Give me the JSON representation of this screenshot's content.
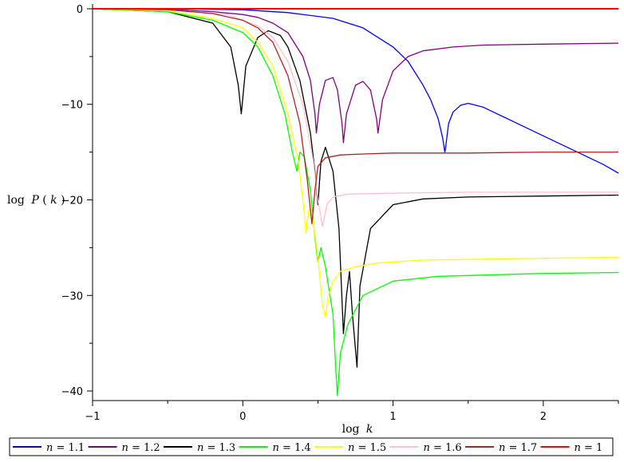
{
  "chart_data": {
    "type": "line",
    "xlabel": "log k",
    "ylabel": "log P(k)",
    "xlim": [
      -1,
      2.5
    ],
    "ylim": [
      -41,
      0.5
    ],
    "xticks": [
      -1,
      0,
      1,
      2
    ],
    "yticks": [
      0,
      -10,
      -20,
      -30,
      -40
    ],
    "grid": false,
    "legend_position": "bottom",
    "series": [
      {
        "name": "n = 1.1",
        "color": "#0000ff",
        "x": [
          -1,
          -0.5,
          0,
          0.3,
          0.6,
          0.8,
          1.0,
          1.1,
          1.2,
          1.25,
          1.3,
          1.33,
          1.345,
          1.35,
          1.37,
          1.4,
          1.45,
          1.5,
          1.6,
          1.8,
          2.0,
          2.2,
          2.4,
          2.5
        ],
        "y": [
          0,
          0,
          -0.1,
          -0.4,
          -1,
          -2,
          -4,
          -5.5,
          -8,
          -9.5,
          -11.5,
          -13.5,
          -15,
          -14.5,
          -12,
          -10.8,
          -10.1,
          -9.9,
          -10.3,
          -11.8,
          -13.3,
          -14.8,
          -16.3,
          -17.2
        ]
      },
      {
        "name": "n = 1.2",
        "color": "#800080",
        "x": [
          -1,
          -0.5,
          -0.2,
          0,
          0.1,
          0.2,
          0.3,
          0.4,
          0.45,
          0.48,
          0.49,
          0.51,
          0.55,
          0.6,
          0.63,
          0.66,
          0.67,
          0.69,
          0.75,
          0.8,
          0.85,
          0.89,
          0.9,
          0.93,
          1.0,
          1.1,
          1.2,
          1.4,
          1.6,
          2.0,
          2.5
        ],
        "y": [
          0,
          -0.05,
          -0.3,
          -0.6,
          -0.9,
          -1.5,
          -2.5,
          -5,
          -7.5,
          -11,
          -13,
          -10,
          -7.5,
          -7.2,
          -8.5,
          -12,
          -14,
          -11,
          -8,
          -7.6,
          -8.5,
          -11.5,
          -13,
          -9.5,
          -6.5,
          -5,
          -4.4,
          -4,
          -3.8,
          -3.7,
          -3.6
        ]
      },
      {
        "name": "n = 1.3",
        "color": "#000000",
        "x": [
          -1,
          -0.5,
          -0.2,
          -0.08,
          -0.03,
          -0.01,
          0.02,
          0.1,
          0.17,
          0.25,
          0.3,
          0.38,
          0.45,
          0.48,
          0.5,
          0.52,
          0.55,
          0.6,
          0.64,
          0.67,
          0.69,
          0.71,
          0.73,
          0.76,
          0.78,
          0.85,
          1.0,
          1.2,
          1.5,
          2.0,
          2.5
        ],
        "y": [
          0,
          -0.3,
          -1.5,
          -4,
          -8,
          -11,
          -6,
          -3,
          -2.3,
          -2.8,
          -4,
          -7.5,
          -13,
          -17,
          -20.5,
          -16,
          -14.5,
          -17,
          -23,
          -34,
          -30,
          -27.5,
          -32,
          -37.5,
          -29,
          -23,
          -20.5,
          -19.9,
          -19.7,
          -19.6,
          -19.5
        ]
      },
      {
        "name": "n = 1.4",
        "color": "#00ff00",
        "x": [
          -1,
          -0.5,
          -0.2,
          0,
          0.1,
          0.2,
          0.28,
          0.33,
          0.36,
          0.38,
          0.41,
          0.45,
          0.48,
          0.5,
          0.52,
          0.55,
          0.6,
          0.62,
          0.63,
          0.65,
          0.7,
          0.8,
          1.0,
          1.3,
          2.0,
          2.5
        ],
        "y": [
          0,
          -0.3,
          -1.2,
          -2.5,
          -4,
          -7,
          -11,
          -15,
          -17,
          -15,
          -15.5,
          -19,
          -24,
          -26.5,
          -25,
          -27,
          -32,
          -38,
          -40.5,
          -36,
          -33,
          -30,
          -28.5,
          -28,
          -27.7,
          -27.6
        ]
      },
      {
        "name": "n = 1.5",
        "color": "#ffff00",
        "x": [
          -1,
          -0.5,
          -0.2,
          0,
          0.1,
          0.2,
          0.3,
          0.37,
          0.41,
          0.42,
          0.44,
          0.46,
          0.5,
          0.53,
          0.55,
          0.57,
          0.6,
          0.65,
          0.75,
          0.9,
          1.2,
          1.6,
          2.0,
          2.5
        ],
        "y": [
          0,
          -0.2,
          -1,
          -2,
          -3.5,
          -6,
          -11,
          -16,
          -21.5,
          -23.5,
          -21,
          -21.3,
          -26,
          -31,
          -32.3,
          -30,
          -28.5,
          -27.5,
          -27,
          -26.6,
          -26.3,
          -26.2,
          -26.1,
          -26.0
        ]
      },
      {
        "name": "n = 1.6",
        "color": "#ffc0cb",
        "x": [
          -1,
          -0.5,
          -0.1,
          0.1,
          0.2,
          0.3,
          0.4,
          0.47,
          0.5,
          0.53,
          0.54,
          0.56,
          0.6,
          0.7,
          1.0,
          1.5,
          2.0,
          2.5
        ],
        "y": [
          0,
          -0.1,
          -0.6,
          -1.8,
          -3,
          -5.5,
          -10,
          -16,
          -20,
          -22.8,
          -22,
          -20.5,
          -19.7,
          -19.4,
          -19.3,
          -19.2,
          -19.2,
          -19.2
        ]
      },
      {
        "name": "n = 1.7",
        "color": "#b22222",
        "x": [
          -1,
          -0.5,
          -0.2,
          0,
          0.1,
          0.2,
          0.3,
          0.38,
          0.43,
          0.46,
          0.48,
          0.5,
          0.55,
          0.65,
          0.8,
          1.0,
          1.5,
          2.0,
          2.5
        ],
        "y": [
          0,
          -0.1,
          -0.5,
          -1.2,
          -2,
          -3.5,
          -7,
          -12,
          -18,
          -22.5,
          -19,
          -16.5,
          -15.6,
          -15.3,
          -15.2,
          -15.1,
          -15.1,
          -15.0,
          -15.0
        ]
      },
      {
        "name": "n = 1",
        "color": "#ff0000",
        "x": [
          -1,
          2.5
        ],
        "y": [
          0,
          0
        ]
      }
    ]
  },
  "labels": {
    "xlabel_log": "log",
    "xlabel_var": "k",
    "ylabel_log": "log",
    "ylabel_fn": "P",
    "ylabel_open": "(",
    "ylabel_var": "k",
    "ylabel_close": ")",
    "xtick_labels": [
      "−1",
      "0",
      "1",
      "2"
    ],
    "ytick_labels": [
      "0",
      "−10",
      "−20",
      "−30",
      "−40"
    ]
  },
  "legend": [
    {
      "var": "n",
      "eq": " = 1.1"
    },
    {
      "var": "n",
      "eq": " = 1.2"
    },
    {
      "var": "n",
      "eq": " = 1.3"
    },
    {
      "var": "n",
      "eq": " = 1.4"
    },
    {
      "var": "n",
      "eq": " = 1.5"
    },
    {
      "var": "n",
      "eq": " = 1.6"
    },
    {
      "var": "n",
      "eq": " = 1.7"
    },
    {
      "var": "n",
      "eq": " = 1"
    }
  ]
}
